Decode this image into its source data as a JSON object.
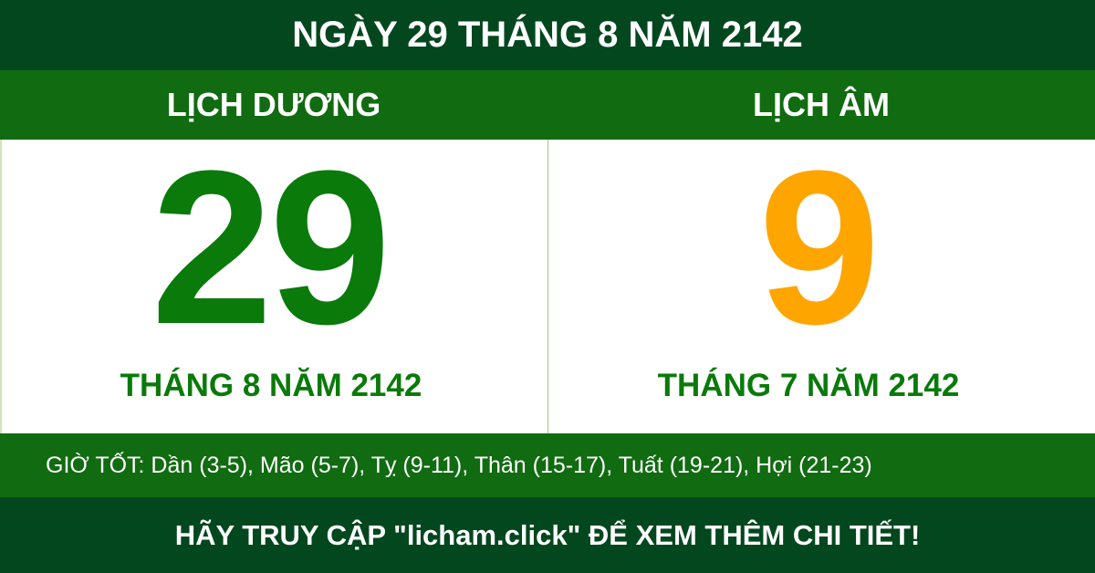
{
  "title": "NGÀY 29 THÁNG 8 NĂM 2142",
  "solar": {
    "heading": "LỊCH DƯƠNG",
    "day": "29",
    "month_year": "THÁNG 8 NĂM 2142"
  },
  "lunar": {
    "heading": "LỊCH ÂM",
    "day": "9",
    "month_year": "THÁNG 7 NĂM 2142"
  },
  "good_hours": "GIỜ TỐT: Dần (3-5), Mão (5-7), Tỵ (9-11), Thân (15-17), Tuất (19-21), Hợi (21-23)",
  "footer": "HÃY TRUY CẬP \"licham.click\" ĐỂ XEM THÊM CHI TIẾT!",
  "colors": {
    "dark_green": "#03471f",
    "green": "#116b11",
    "solar_day": "#0a7a0a",
    "lunar_day": "#ffa500"
  }
}
